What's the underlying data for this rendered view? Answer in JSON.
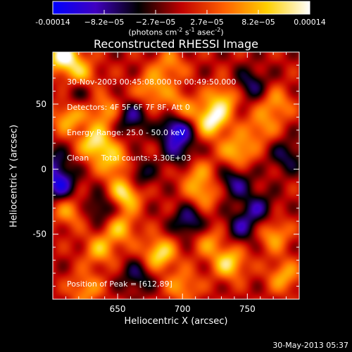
{
  "chart_data": {
    "type": "heatmap",
    "title": "Reconstructed RHESSI Image",
    "xlabel": "Heliocentric X (arcsec)",
    "ylabel": "Heliocentric Y (arcsec)",
    "xlim": [
      600,
      790
    ],
    "ylim": [
      -100,
      90
    ],
    "x_ticks": [
      "650",
      "700",
      "750"
    ],
    "y_ticks": [
      "50",
      "0",
      "-50"
    ],
    "colorbar": {
      "label_main": "(photons cm",
      "label_exp1": "-2",
      "label_mid": " s",
      "label_exp2": "-1",
      "label_mid2": " asec",
      "label_exp3": "-2",
      "label_end": ")",
      "ticks": [
        "-0.00014",
        "−8.2e−05",
        "−2.7e−05",
        "2.7e−05",
        "8.2e−05",
        "0.00014"
      ],
      "range": [
        -0.00014,
        0.00014
      ],
      "colors": [
        "#0000ff",
        "#4000c0",
        "#000000",
        "#c00000",
        "#ff6000",
        "#ffd000",
        "#ffffff"
      ]
    },
    "info_lines": [
      "30-Nov-2003 00:45:08.000 to 00:49:50.000",
      "Detectors: 4F 5F 6F 7F 8F, Att 0",
      "Energy Range: 25.0 - 50.0 keV",
      "Clean     Total counts: 3.30E+03"
    ],
    "peak_text": "Position of Peak = [612,89]",
    "sources": [
      {
        "x": 608,
        "y": 87,
        "v": 1.0
      },
      {
        "x": 622,
        "y": 72,
        "v": 0.6
      },
      {
        "x": 640,
        "y": 45,
        "v": 0.55
      },
      {
        "x": 633,
        "y": 20,
        "v": 0.85
      },
      {
        "x": 648,
        "y": 5,
        "v": 0.6
      },
      {
        "x": 656,
        "y": -18,
        "v": 0.9
      },
      {
        "x": 652,
        "y": -45,
        "v": 0.6
      },
      {
        "x": 636,
        "y": -62,
        "v": 0.55
      },
      {
        "x": 612,
        "y": 40,
        "v": 0.6
      },
      {
        "x": 612,
        "y": -32,
        "v": 0.5
      },
      {
        "x": 690,
        "y": 80,
        "v": 0.45
      },
      {
        "x": 676,
        "y": 62,
        "v": 0.55
      },
      {
        "x": 698,
        "y": 48,
        "v": 0.5
      },
      {
        "x": 722,
        "y": 38,
        "v": 0.95
      },
      {
        "x": 732,
        "y": 55,
        "v": 0.6
      },
      {
        "x": 708,
        "y": 0,
        "v": 0.5
      },
      {
        "x": 716,
        "y": -18,
        "v": 0.55
      },
      {
        "x": 742,
        "y": 14,
        "v": 0.65
      },
      {
        "x": 760,
        "y": 32,
        "v": 0.45
      },
      {
        "x": 772,
        "y": 50,
        "v": 0.5
      },
      {
        "x": 682,
        "y": -65,
        "v": 0.8
      },
      {
        "x": 720,
        "y": -55,
        "v": 0.45
      },
      {
        "x": 736,
        "y": -72,
        "v": 0.75
      },
      {
        "x": 700,
        "y": -90,
        "v": 0.5
      },
      {
        "x": 770,
        "y": -50,
        "v": 0.55
      },
      {
        "x": 778,
        "y": -82,
        "v": 0.55
      },
      {
        "x": 625,
        "y": -92,
        "v": 0.5
      },
      {
        "x": 600,
        "y": 5,
        "v": -0.45
      },
      {
        "x": 605,
        "y": -12,
        "v": -0.75
      },
      {
        "x": 695,
        "y": 30,
        "v": -0.9
      },
      {
        "x": 705,
        "y": -40,
        "v": -0.6
      },
      {
        "x": 700,
        "y": 10,
        "v": -0.5
      },
      {
        "x": 660,
        "y": 40,
        "v": -0.55
      },
      {
        "x": 665,
        "y": -5,
        "v": -0.5
      },
      {
        "x": 740,
        "y": -10,
        "v": -0.55
      },
      {
        "x": 752,
        "y": 65,
        "v": -0.5
      },
      {
        "x": 758,
        "y": -30,
        "v": -0.5
      },
      {
        "x": 638,
        "y": -30,
        "v": -0.5
      },
      {
        "x": 665,
        "y": -82,
        "v": -0.45
      },
      {
        "x": 745,
        "y": -45,
        "v": -0.5
      },
      {
        "x": 780,
        "y": 10,
        "v": -0.45
      },
      {
        "x": 620,
        "y": 60,
        "v": -0.4
      }
    ]
  },
  "timestamp": "30-May-2013 05:37"
}
